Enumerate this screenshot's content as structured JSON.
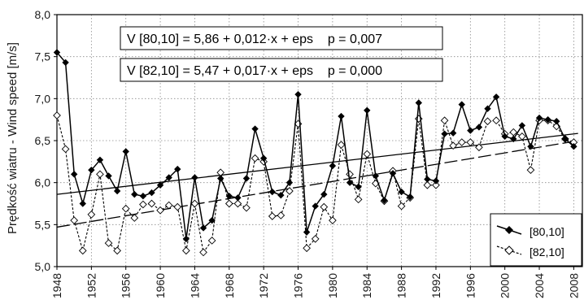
{
  "chart_data": {
    "type": "line",
    "ylabel": "Prędkość wiatru - Wind speed [m/s]",
    "xlabel": "",
    "xlim": [
      1948,
      2009
    ],
    "ylim": [
      5.0,
      8.0
    ],
    "x_ticks": [
      "1948",
      "1952",
      "1956",
      "1960",
      "1964",
      "1968",
      "1972",
      "1976",
      "1980",
      "1984",
      "1988",
      "1992",
      "1996",
      "2000",
      "2004",
      "2008"
    ],
    "y_ticks": [
      "5,0",
      "5,5",
      "6,0",
      "6,5",
      "7,0",
      "7,5",
      "8,0"
    ],
    "grid": true,
    "legend_position": "bottom-right",
    "x": [
      1948,
      1949,
      1950,
      1951,
      1952,
      1953,
      1954,
      1955,
      1956,
      1957,
      1958,
      1959,
      1960,
      1961,
      1962,
      1963,
      1964,
      1965,
      1966,
      1967,
      1968,
      1969,
      1970,
      1971,
      1972,
      1973,
      1974,
      1975,
      1976,
      1977,
      1978,
      1979,
      1980,
      1981,
      1982,
      1983,
      1984,
      1985,
      1986,
      1987,
      1988,
      1989,
      1990,
      1991,
      1992,
      1993,
      1994,
      1995,
      1996,
      1997,
      1998,
      1999,
      2000,
      2001,
      2002,
      2003,
      2004,
      2005,
      2006,
      2007,
      2008
    ],
    "series": [
      {
        "name": "[80,10]",
        "marker": "filled-diamond",
        "line": "solid",
        "values": [
          7.55,
          7.43,
          6.1,
          5.75,
          6.15,
          6.27,
          6.08,
          5.9,
          6.37,
          5.86,
          5.84,
          5.88,
          5.97,
          6.06,
          6.16,
          5.33,
          6.06,
          5.46,
          5.55,
          6.05,
          5.84,
          5.82,
          6.05,
          6.64,
          6.29,
          5.89,
          5.85,
          6.0,
          7.05,
          5.41,
          5.72,
          5.86,
          6.2,
          6.79,
          6.0,
          5.95,
          6.86,
          6.08,
          5.79,
          6.11,
          5.89,
          5.83,
          6.95,
          6.04,
          6.02,
          6.58,
          6.59,
          6.93,
          6.62,
          6.66,
          6.88,
          7.02,
          6.55,
          6.52,
          6.68,
          6.43,
          6.77,
          6.75,
          6.73,
          6.52,
          6.43
        ]
      },
      {
        "name": "[82,10]",
        "marker": "open-diamond",
        "line": "dashed",
        "values": [
          6.8,
          6.4,
          5.55,
          5.19,
          5.62,
          6.1,
          5.28,
          5.19,
          5.69,
          5.58,
          5.74,
          5.75,
          5.67,
          5.73,
          5.71,
          5.19,
          5.75,
          5.17,
          5.31,
          6.12,
          5.75,
          5.75,
          5.7,
          6.29,
          6.25,
          5.6,
          5.61,
          5.9,
          6.7,
          5.22,
          5.33,
          5.71,
          5.55,
          6.45,
          6.1,
          5.8,
          6.34,
          5.99,
          5.78,
          6.14,
          5.72,
          5.82,
          6.76,
          5.97,
          5.97,
          6.74,
          6.44,
          6.48,
          6.48,
          6.42,
          6.73,
          6.74,
          6.58,
          6.6,
          6.55,
          6.15,
          6.74,
          6.74,
          6.67,
          6.52,
          6.48
        ]
      }
    ],
    "trends": [
      {
        "series": "[80,10]",
        "intercept": 5.86,
        "slope": 0.012,
        "style": "solid"
      },
      {
        "series": "[82,10]",
        "intercept": 5.47,
        "slope": 0.017,
        "style": "dashed"
      }
    ],
    "annotations": [
      "V [80,10] = 5,86 + 0,012·x + eps    p = 0,007",
      "V [82,10] = 5,47 + 0,017·x + eps    p = 0,000"
    ]
  }
}
